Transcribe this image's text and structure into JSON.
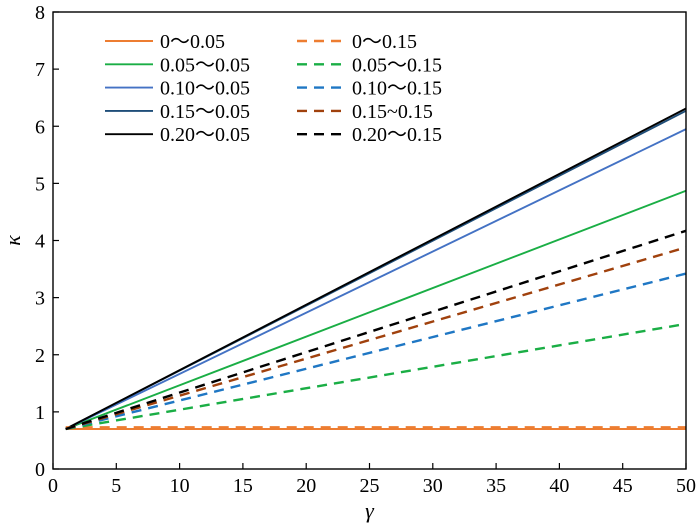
{
  "chart_data": {
    "type": "line",
    "title": "",
    "xlabel": "γ",
    "ylabel": "κ",
    "xlim": [
      0,
      50
    ],
    "ylim": [
      0,
      8
    ],
    "xticks": [
      0,
      5,
      10,
      15,
      20,
      25,
      30,
      35,
      40,
      45,
      50
    ],
    "yticks": [
      0,
      1,
      2,
      3,
      4,
      5,
      6,
      7,
      8
    ],
    "grid": false,
    "legend_position": "top-left",
    "legend_columns": 2,
    "series": [
      {
        "name": "0～0.05",
        "color": "#ed7d31",
        "dash": "solid",
        "x": [
          1,
          50
        ],
        "y": [
          0.7,
          0.7
        ]
      },
      {
        "name": "0.05～0.05",
        "color": "#1aae45",
        "dash": "solid",
        "x": [
          1,
          50
        ],
        "y": [
          0.7,
          4.87
        ]
      },
      {
        "name": "0.10～0.05",
        "color": "#4472c4",
        "dash": "solid",
        "x": [
          1,
          50
        ],
        "y": [
          0.7,
          5.95
        ]
      },
      {
        "name": "0.15～0.05",
        "color": "#1f4e79",
        "dash": "solid",
        "x": [
          1,
          50
        ],
        "y": [
          0.7,
          6.27
        ]
      },
      {
        "name": "0.20～0.05",
        "color": "#000000",
        "dash": "solid",
        "x": [
          1,
          50
        ],
        "y": [
          0.7,
          6.31
        ]
      },
      {
        "name": "0～0.15",
        "color": "#ed7d31",
        "dash": "dashed",
        "x": [
          1,
          50
        ],
        "y": [
          0.73,
          0.73
        ]
      },
      {
        "name": "0.05～0.15",
        "color": "#1aae45",
        "dash": "dashed",
        "x": [
          1,
          50
        ],
        "y": [
          0.7,
          2.54
        ]
      },
      {
        "name": "0.10～0.15",
        "color": "#1f77c4",
        "dash": "dashed",
        "x": [
          1,
          50
        ],
        "y": [
          0.7,
          3.42
        ]
      },
      {
        "name": "0.15~0.15",
        "color": "#a0410d",
        "dash": "dashed",
        "x": [
          1,
          50
        ],
        "y": [
          0.7,
          3.88
        ]
      },
      {
        "name": "0.20～0.15",
        "color": "#000000",
        "dash": "dashed",
        "x": [
          1,
          50
        ],
        "y": [
          0.7,
          4.17
        ]
      }
    ]
  }
}
